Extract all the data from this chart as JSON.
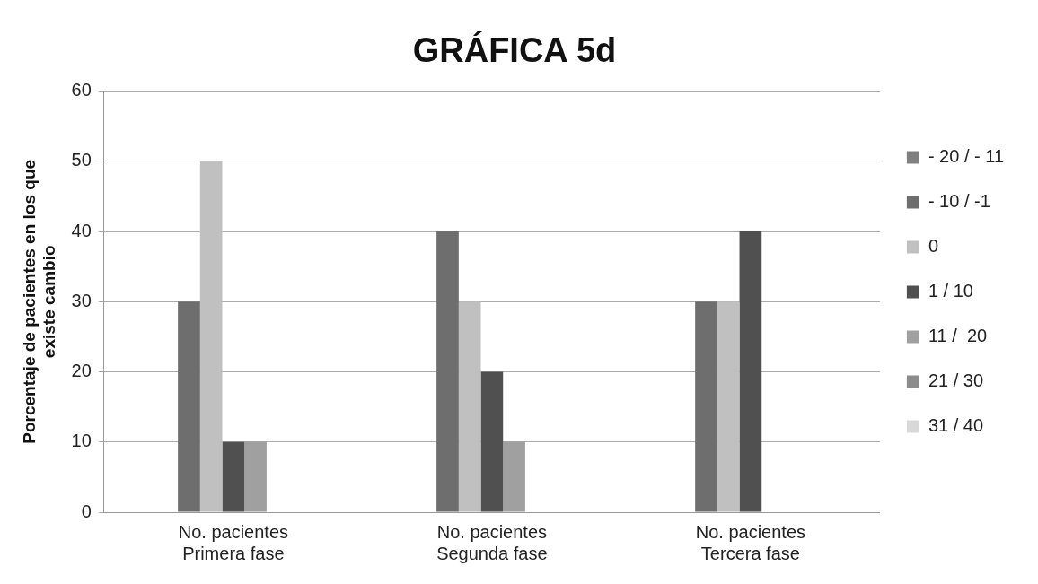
{
  "chart_data": {
    "type": "bar",
    "title": "GRÁFICA 5d",
    "ylabel": "Porcentaje de pacientes en los que existe cambio",
    "categories": [
      "No. pacientes\nPrimera fase",
      "No. pacientes\nSegunda fase",
      "No. pacientes\nTercera fase"
    ],
    "series": [
      {
        "name": "- 20 / - 11",
        "color": "#808080",
        "values": [
          0,
          0,
          0
        ]
      },
      {
        "name": "- 10 / -1",
        "color": "#6e6e6e",
        "values": [
          30,
          40,
          30
        ]
      },
      {
        "name": "0",
        "color": "#c0c0c0",
        "values": [
          50,
          30,
          30
        ]
      },
      {
        "name": "1 / 10",
        "color": "#505050",
        "values": [
          10,
          20,
          40
        ]
      },
      {
        "name": "11 /  20",
        "color": "#a0a0a0",
        "values": [
          10,
          10,
          0
        ]
      },
      {
        "name": "21 / 30",
        "color": "#8c8c8c",
        "values": [
          0,
          0,
          0
        ]
      },
      {
        "name": "31 / 40",
        "color": "#d8d8d8",
        "values": [
          0,
          0,
          0
        ]
      }
    ],
    "ylim": [
      0,
      60
    ],
    "yticks": [
      0,
      10,
      20,
      30,
      40,
      50,
      60
    ],
    "grid": "y",
    "legend": "right"
  }
}
